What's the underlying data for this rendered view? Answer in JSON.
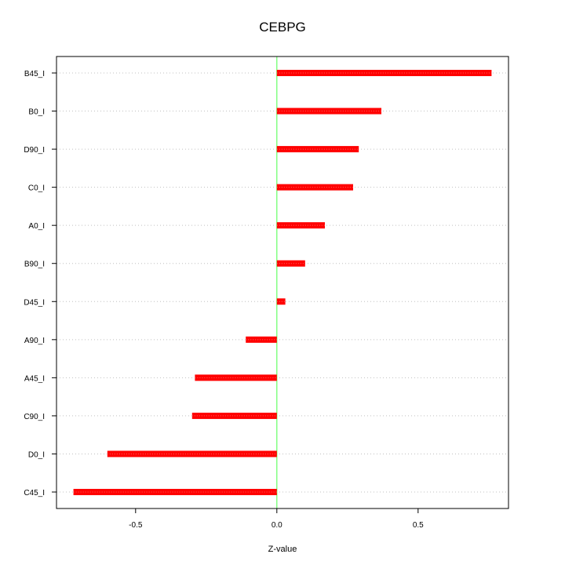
{
  "chart_data": {
    "type": "bar",
    "orientation": "horizontal",
    "title": "CEBPG",
    "xlabel": "Z-value",
    "ylabel": "",
    "categories": [
      "B45_I",
      "B0_I",
      "D90_I",
      "C0_I",
      "A0_I",
      "B90_I",
      "D45_I",
      "A90_I",
      "A45_I",
      "C90_I",
      "D0_I",
      "C45_I"
    ],
    "values": [
      0.76,
      0.37,
      0.29,
      0.27,
      0.17,
      0.1,
      0.03,
      -0.11,
      -0.29,
      -0.3,
      -0.6,
      -0.72
    ],
    "xlim": [
      -0.78,
      0.82
    ],
    "xticks": [
      -0.5,
      0.0,
      0.5
    ],
    "xtick_labels": [
      "-0.5",
      "0.0",
      "0.5"
    ],
    "reference_line": 0,
    "grid": "horizontal dotted",
    "legend": "none",
    "colors": {
      "bar": "#ff0000",
      "bar_highlight": "#ff6666",
      "reference_line": "#66ff66",
      "grid": "#c0c0c0",
      "axis": "#000000"
    }
  }
}
